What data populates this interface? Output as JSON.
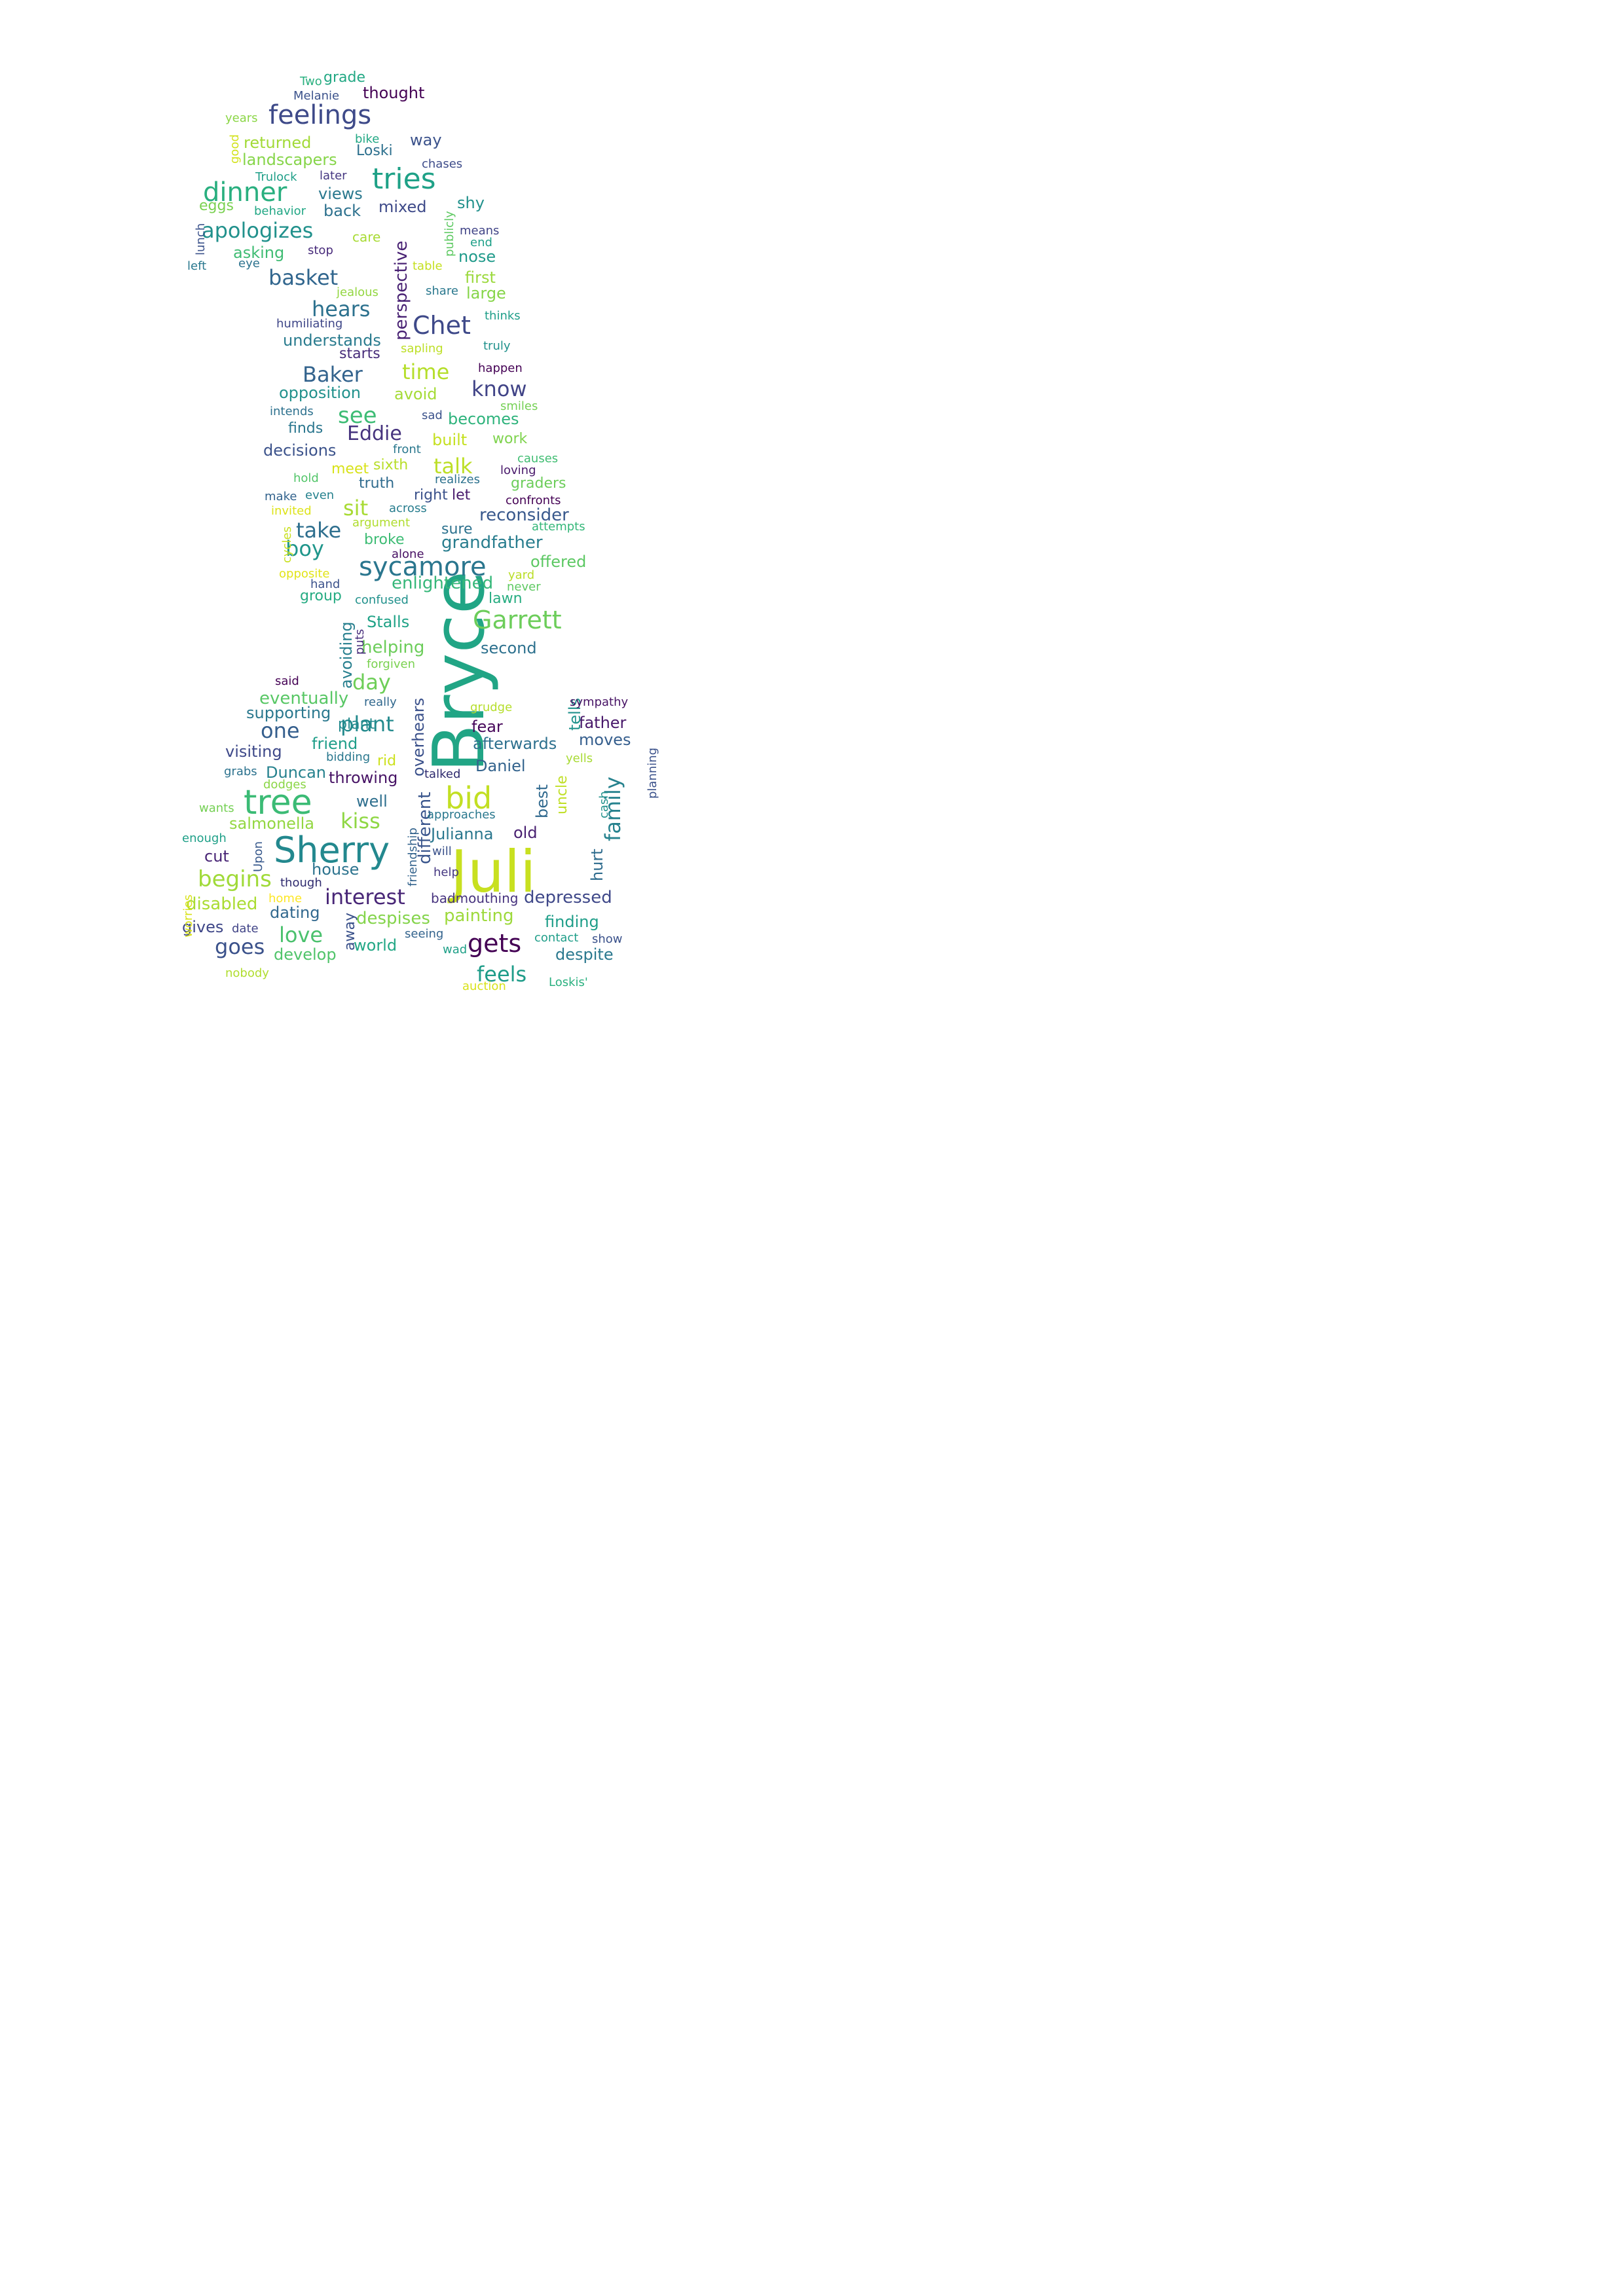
{
  "words": [
    {
      "t": "Bryce",
      "c": "#21a585"
    },
    {
      "t": "Juli",
      "c": "#c8e020"
    },
    {
      "t": "Sherry",
      "c": "#23888e"
    },
    {
      "t": "tree",
      "c": "#3bbb75"
    },
    {
      "t": "bid",
      "c": "#c2df23"
    },
    {
      "t": "tries",
      "c": "#1fa187"
    },
    {
      "t": "feelings",
      "c": "#3e4a89"
    },
    {
      "t": "dinner",
      "c": "#29af7f"
    },
    {
      "t": "sycamore",
      "c": "#2a768e"
    },
    {
      "t": "Garrett",
      "c": "#6ccd5a"
    },
    {
      "t": "gets",
      "c": "#440154"
    },
    {
      "t": "Chet",
      "c": "#3e4989"
    },
    {
      "t": "apologizes",
      "c": "#21918c"
    },
    {
      "t": "interest",
      "c": "#482677"
    },
    {
      "t": "family",
      "c": "#26828e"
    },
    {
      "t": "love",
      "c": "#4ac16d"
    },
    {
      "t": "basket",
      "c": "#31668e"
    },
    {
      "t": "hears",
      "c": "#2c718e"
    },
    {
      "t": "begins",
      "c": "#a0da39"
    },
    {
      "t": "kiss",
      "c": "#8fd744"
    },
    {
      "t": "goes",
      "c": "#3b528b"
    },
    {
      "t": "Baker",
      "c": "#33638d"
    },
    {
      "t": "time",
      "c": "#b5de2b"
    },
    {
      "t": "see",
      "c": "#3dbc74"
    },
    {
      "t": "know",
      "c": "#414487"
    },
    {
      "t": "talk",
      "c": "#bddf26"
    },
    {
      "t": "take",
      "c": "#2e6f8e"
    },
    {
      "t": "Eddie",
      "c": "#46337e"
    },
    {
      "t": "plant",
      "c": "#238a8d"
    },
    {
      "t": "day",
      "c": "#6ece58"
    },
    {
      "t": "boy",
      "c": "#1f968b"
    },
    {
      "t": "one",
      "c": "#355f8d"
    },
    {
      "t": "feels",
      "c": "#1e9c89"
    },
    {
      "t": "sit",
      "c": "#a8db34"
    },
    {
      "t": "perspective",
      "c": "#482173"
    },
    {
      "t": "painting",
      "c": "#9dd93b"
    },
    {
      "t": "depressed",
      "c": "#3f4889"
    },
    {
      "t": "Julianna",
      "c": "#2a778e"
    },
    {
      "t": "despises",
      "c": "#84d44b"
    },
    {
      "t": "grandfather",
      "c": "#287d8e"
    },
    {
      "t": "reconsider",
      "c": "#38588c"
    },
    {
      "t": "enlightened",
      "c": "#35b779"
    },
    {
      "t": "different",
      "c": "#39558c"
    },
    {
      "t": "overhears",
      "c": "#3b518b"
    },
    {
      "t": "eventually",
      "c": "#58c765"
    },
    {
      "t": "salmonella",
      "c": "#93d741"
    },
    {
      "t": "afterwards",
      "c": "#2d708e"
    },
    {
      "t": "understands",
      "c": "#297b8e"
    },
    {
      "t": "opposition",
      "c": "#21918c"
    },
    {
      "t": "landscapers",
      "c": "#86d549"
    },
    {
      "t": "returned",
      "c": "#a2da37"
    },
    {
      "t": "helping",
      "c": "#6ccd5a"
    },
    {
      "t": "disabled",
      "c": "#aadc32"
    },
    {
      "t": "decisions",
      "c": "#3b528b"
    },
    {
      "t": "throwing",
      "c": "#471365"
    },
    {
      "t": "supporting",
      "c": "#2a788e"
    },
    {
      "t": "visiting",
      "c": "#3e4989"
    },
    {
      "t": "Duncan",
      "c": "#26828e"
    },
    {
      "t": "avoiding",
      "c": "#277f8e"
    },
    {
      "t": "offered",
      "c": "#5cc863"
    },
    {
      "t": "finding",
      "c": "#1f9e89"
    },
    {
      "t": "develop",
      "c": "#50c46a"
    },
    {
      "t": "house",
      "c": "#2c738e"
    },
    {
      "t": "dating",
      "c": "#31688e"
    },
    {
      "t": "mixed",
      "c": "#3e4a89"
    },
    {
      "t": "Stalls",
      "c": "#1fa287"
    },
    {
      "t": "Daniel",
      "c": "#33638d"
    },
    {
      "t": "despite",
      "c": "#2a788e"
    },
    {
      "t": "second",
      "c": "#2d718e"
    },
    {
      "t": "father",
      "c": "#48186a"
    },
    {
      "t": "tells",
      "c": "#20928c"
    },
    {
      "t": "uncle",
      "c": "#c0df25"
    },
    {
      "t": "best",
      "c": "#30698e"
    },
    {
      "t": "hurt",
      "c": "#2f6c8e"
    },
    {
      "t": "moves",
      "c": "#355e8d"
    },
    {
      "t": "world",
      "c": "#22a785"
    },
    {
      "t": "fear",
      "c": "#450559"
    },
    {
      "t": "friend",
      "c": "#1f9e89"
    },
    {
      "t": "well",
      "c": "#2e6f8e"
    },
    {
      "t": "old",
      "c": "#481f70"
    },
    {
      "t": "cut",
      "c": "#482475"
    },
    {
      "t": "gives",
      "c": "#3f4788"
    },
    {
      "t": "away",
      "c": "#3b528b"
    },
    {
      "t": "views",
      "c": "#2a788e"
    },
    {
      "t": "back",
      "c": "#2d718e"
    },
    {
      "t": "eggs",
      "c": "#7ad151"
    },
    {
      "t": "asking",
      "c": "#3fbc73"
    },
    {
      "t": "shy",
      "c": "#21918c"
    },
    {
      "t": "nose",
      "c": "#1f9a8a"
    },
    {
      "t": "first",
      "c": "#9bd93c"
    },
    {
      "t": "large",
      "c": "#86d549"
    },
    {
      "t": "way",
      "c": "#3b528b"
    },
    {
      "t": "Loski",
      "c": "#2d708e"
    },
    {
      "t": "thought",
      "c": "#440154"
    },
    {
      "t": "grade",
      "c": "#22a884"
    },
    {
      "t": "starts",
      "c": "#472c7a"
    },
    {
      "t": "avoid",
      "c": "#a5db36"
    },
    {
      "t": "becomes",
      "c": "#2eb37c"
    },
    {
      "t": "finds",
      "c": "#2a768e"
    },
    {
      "t": "built",
      "c": "#c5e021"
    },
    {
      "t": "work",
      "c": "#7fd34e"
    },
    {
      "t": "meet",
      "c": "#d8e219"
    },
    {
      "t": "sixth",
      "c": "#b8de29"
    },
    {
      "t": "truth",
      "c": "#2f6b8e"
    },
    {
      "t": "right",
      "c": "#3b528b"
    },
    {
      "t": "let",
      "c": "#481a6c"
    },
    {
      "t": "graders",
      "c": "#6ccd5a"
    },
    {
      "t": "sure",
      "c": "#2c728e"
    },
    {
      "t": "broke",
      "c": "#3dbc74"
    },
    {
      "t": "group",
      "c": "#25ab82"
    },
    {
      "t": "lawn",
      "c": "#27ad81"
    },
    {
      "t": "plant",
      "c": "#238a8d"
    },
    {
      "t": "rid",
      "c": "#cde11d"
    },
    {
      "t": "badmouthing",
      "c": "#46327e"
    },
    {
      "t": "Trulock",
      "c": "#1f9f88"
    },
    {
      "t": "later",
      "c": "#453781"
    },
    {
      "t": "behavior",
      "c": "#22a785"
    },
    {
      "t": "care",
      "c": "#a8db34"
    },
    {
      "t": "stop",
      "c": "#472a7a"
    },
    {
      "t": "eye",
      "c": "#2c728e"
    },
    {
      "t": "left",
      "c": "#2a788e"
    },
    {
      "t": "lunch",
      "c": "#3b528b"
    },
    {
      "t": "good",
      "c": "#d2e21b"
    },
    {
      "t": "years",
      "c": "#8bd646"
    },
    {
      "t": "Two",
      "c": "#2ab07f"
    },
    {
      "t": "Melanie",
      "c": "#3b528b"
    },
    {
      "t": "bike",
      "c": "#22a884"
    },
    {
      "t": "chases",
      "c": "#3e4c8a"
    },
    {
      "t": "publicly",
      "c": "#5ec962"
    },
    {
      "t": "means",
      "c": "#414487"
    },
    {
      "t": "end",
      "c": "#1fa088"
    },
    {
      "t": "table",
      "c": "#c5e021"
    },
    {
      "t": "jealous",
      "c": "#93d741"
    },
    {
      "t": "share",
      "c": "#2a788e"
    },
    {
      "t": "thinks",
      "c": "#1f9e89"
    },
    {
      "t": "humiliating",
      "c": "#3f4788"
    },
    {
      "t": "sapling",
      "c": "#bddf26"
    },
    {
      "t": "truly",
      "c": "#21918c"
    },
    {
      "t": "happen",
      "c": "#440154"
    },
    {
      "t": "intends",
      "c": "#2d718e"
    },
    {
      "t": "sad",
      "c": "#3b528b"
    },
    {
      "t": "smiles",
      "c": "#75d054"
    },
    {
      "t": "front",
      "c": "#2a788e"
    },
    {
      "t": "causes",
      "c": "#40bd72"
    },
    {
      "t": "hold",
      "c": "#52c569"
    },
    {
      "t": "loving",
      "c": "#48186a"
    },
    {
      "t": "realizes",
      "c": "#2c718e"
    },
    {
      "t": "make",
      "c": "#33638d"
    },
    {
      "t": "even",
      "c": "#26828e"
    },
    {
      "t": "confronts",
      "c": "#440154"
    },
    {
      "t": "invited",
      "c": "#dde318"
    },
    {
      "t": "across",
      "c": "#287d8e"
    },
    {
      "t": "argument",
      "c": "#b0dd2f"
    },
    {
      "t": "attempts",
      "c": "#35b779"
    },
    {
      "t": "cycles",
      "c": "#c8e020"
    },
    {
      "t": "alone",
      "c": "#471063"
    },
    {
      "t": "opposite",
      "c": "#e2e418"
    },
    {
      "t": "hand",
      "c": "#3b528b"
    },
    {
      "t": "yard",
      "c": "#bade28"
    },
    {
      "t": "never",
      "c": "#5ec962"
    },
    {
      "t": "confused",
      "c": "#21918c"
    },
    {
      "t": "puts",
      "c": "#472d7b"
    },
    {
      "t": "forgiven",
      "c": "#7ad151"
    },
    {
      "t": "said",
      "c": "#440154"
    },
    {
      "t": "really",
      "c": "#31688e"
    },
    {
      "t": "grudge",
      "c": "#b5de2b"
    },
    {
      "t": "sympathy",
      "c": "#471365"
    },
    {
      "t": "planning",
      "c": "#3b528b"
    },
    {
      "t": "yells",
      "c": "#a8db34"
    },
    {
      "t": "bidding",
      "c": "#2a788e"
    },
    {
      "t": "grabs",
      "c": "#2c728e"
    },
    {
      "t": "dodges",
      "c": "#8bd646"
    },
    {
      "t": "talked",
      "c": "#2e2a6e"
    },
    {
      "t": "cash",
      "c": "#21918c"
    },
    {
      "t": "wants",
      "c": "#75d054"
    },
    {
      "t": "approaches",
      "c": "#2a788e"
    },
    {
      "t": "enough",
      "c": "#1fa088"
    },
    {
      "t": "Upon",
      "c": "#38598c"
    },
    {
      "t": "friendship",
      "c": "#33638d"
    },
    {
      "t": "will",
      "c": "#3b528b"
    },
    {
      "t": "help",
      "c": "#453781"
    },
    {
      "t": "though",
      "c": "#2e2a6e"
    },
    {
      "t": "home",
      "c": "#fde725"
    },
    {
      "t": "worries",
      "c": "#d8e219"
    },
    {
      "t": "date",
      "c": "#414487"
    },
    {
      "t": "seeing",
      "c": "#33638d"
    },
    {
      "t": "contact",
      "c": "#1f9e89"
    },
    {
      "t": "show",
      "c": "#3b528b"
    },
    {
      "t": "wad",
      "c": "#1fa088"
    },
    {
      "t": "nobody",
      "c": "#b0dd2f"
    },
    {
      "t": "auction",
      "c": "#d8e219"
    },
    {
      "t": "Loskis'",
      "c": "#2ab07f"
    }
  ]
}
